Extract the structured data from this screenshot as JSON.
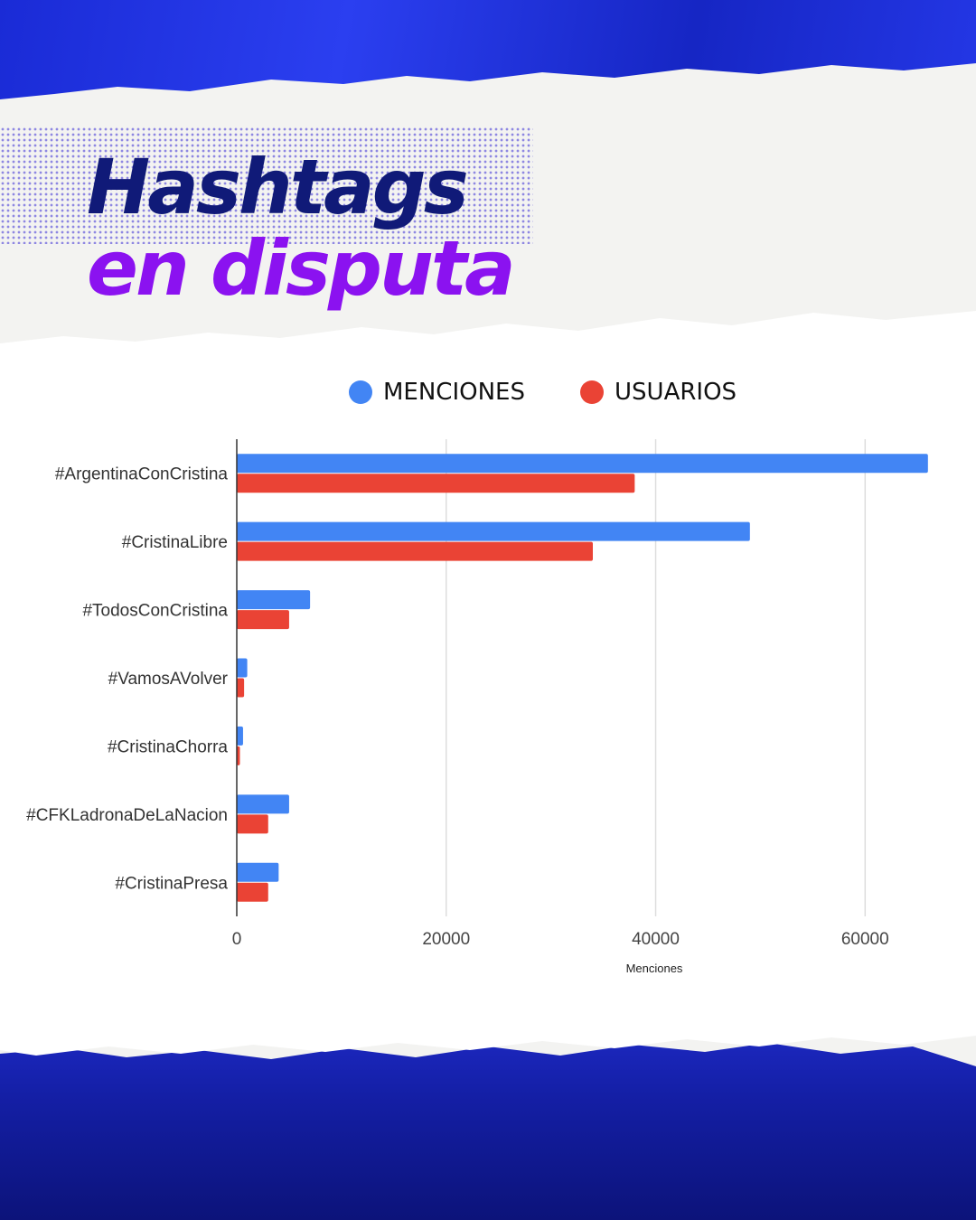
{
  "header": {
    "title_line1": "Hashtags",
    "title_line2": "en disputa"
  },
  "colors": {
    "menciones": "#4285f4",
    "usuarios": "#ea4335",
    "title_dark": "#101a78",
    "title_purple": "#8b12f0"
  },
  "legend": {
    "items": [
      {
        "label": "MENCIONES",
        "color": "#4285f4"
      },
      {
        "label": "USUARIOS",
        "color": "#ea4335"
      }
    ]
  },
  "chart_data": {
    "type": "bar",
    "orientation": "horizontal",
    "categories": [
      "#ArgentinaConCristina",
      "#CristinaLibre",
      "#TodosConCristina",
      "#VamosAVolver",
      "#CristinaChorra",
      "#CFKLadronaDeLaNacion",
      "#CristinaPresa"
    ],
    "series": [
      {
        "name": "MENCIONES",
        "color": "#4285f4",
        "values": [
          66000,
          49000,
          7000,
          1000,
          600,
          5000,
          4000
        ]
      },
      {
        "name": "USUARIOS",
        "color": "#ea4335",
        "values": [
          38000,
          34000,
          5000,
          700,
          300,
          3000,
          3000
        ]
      }
    ],
    "xlabel": "Menciones",
    "ylabel": "",
    "xlim": [
      0,
      68000
    ],
    "xticks": [
      0,
      20000,
      40000,
      60000
    ],
    "xtick_labels": [
      "0",
      "20000",
      "40000",
      "60000"
    ],
    "grid": true,
    "legend_position": "top"
  }
}
